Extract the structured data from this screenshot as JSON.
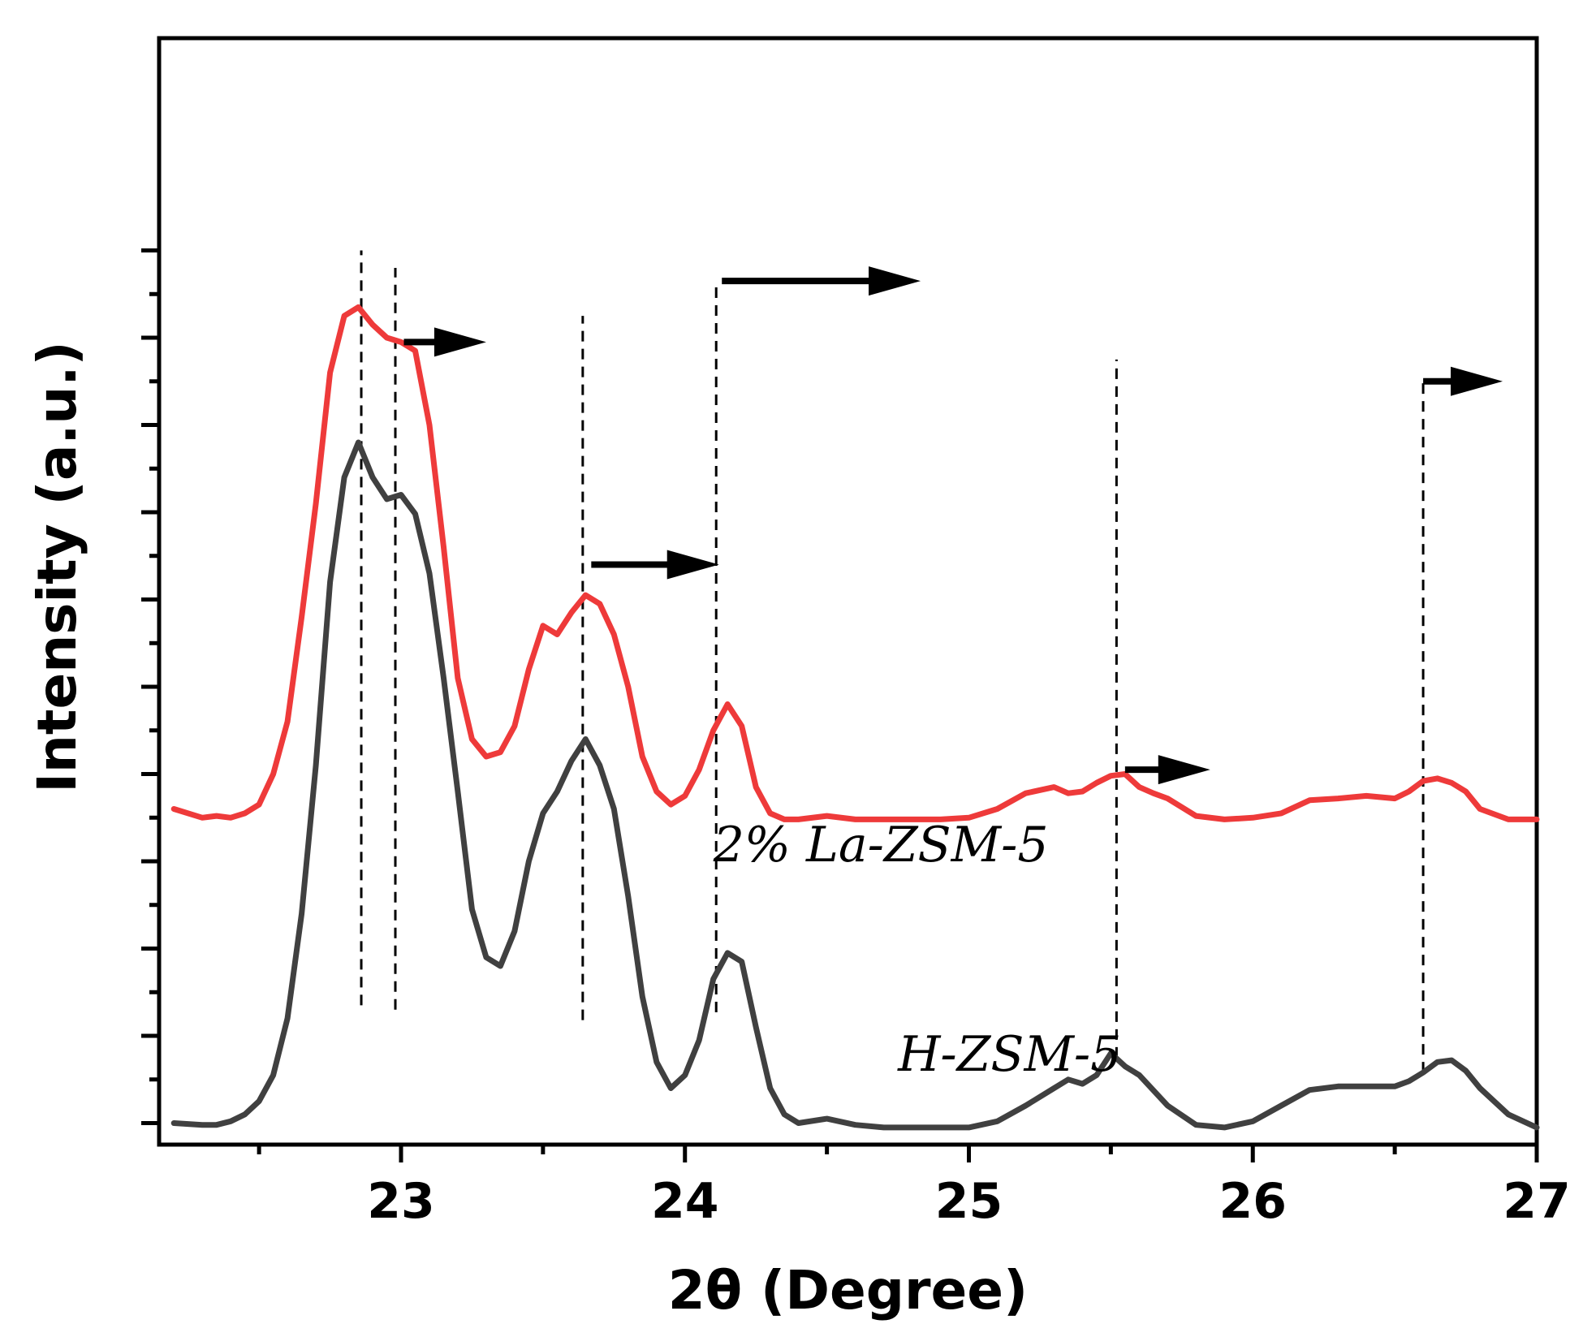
{
  "chart_data": {
    "type": "line",
    "xlabel": "2θ (Degree)",
    "ylabel": "Intensity (a.u.)",
    "xlim": [
      22.2,
      27.0
    ],
    "ylim": [
      0,
      1000
    ],
    "xticks": [
      23,
      24,
      25,
      26,
      27
    ],
    "xtick_labels": [
      "23",
      "24",
      "25",
      "26",
      "27"
    ],
    "minor_xticks": [
      22.5,
      23.5,
      24.5,
      25.5,
      26.5
    ],
    "yticks": [
      20,
      120,
      220,
      320,
      420,
      520,
      620,
      720,
      820,
      920,
      1020
    ],
    "y_tick_labels": false,
    "grid": false,
    "legend": "none",
    "series": [
      {
        "name": "H-ZSM-5",
        "color": "#404040",
        "x": [
          22.2,
          22.3,
          22.35,
          22.4,
          22.45,
          22.5,
          22.55,
          22.6,
          22.65,
          22.7,
          22.75,
          22.8,
          22.85,
          22.9,
          22.95,
          23.0,
          23.05,
          23.1,
          23.15,
          23.2,
          23.25,
          23.3,
          23.35,
          23.4,
          23.45,
          23.5,
          23.55,
          23.6,
          23.65,
          23.7,
          23.75,
          23.8,
          23.85,
          23.9,
          23.95,
          24.0,
          24.05,
          24.1,
          24.15,
          24.2,
          24.25,
          24.3,
          24.35,
          24.4,
          24.5,
          24.6,
          24.7,
          24.8,
          24.9,
          25.0,
          25.1,
          25.2,
          25.3,
          25.35,
          25.4,
          25.45,
          25.5,
          25.55,
          25.6,
          25.7,
          25.8,
          25.9,
          26.0,
          26.1,
          26.2,
          26.3,
          26.4,
          26.5,
          26.55,
          26.6,
          26.65,
          26.7,
          26.75,
          26.8,
          26.9,
          27.0
        ],
        "values": [
          20,
          18,
          18,
          22,
          30,
          45,
          75,
          140,
          260,
          430,
          640,
          760,
          800,
          760,
          735,
          740,
          718,
          650,
          530,
          400,
          265,
          210,
          200,
          240,
          320,
          375,
          400,
          435,
          460,
          430,
          380,
          280,
          165,
          90,
          60,
          75,
          115,
          185,
          215,
          205,
          130,
          60,
          30,
          20,
          25,
          18,
          15,
          15,
          15,
          15,
          22,
          40,
          60,
          70,
          65,
          75,
          100,
          85,
          75,
          40,
          18,
          15,
          22,
          40,
          58,
          62,
          62,
          62,
          68,
          78,
          90,
          92,
          80,
          60,
          30,
          15
        ]
      },
      {
        "name": "2% La-ZSM-5",
        "color": "#ee3a3a",
        "x": [
          22.2,
          22.3,
          22.35,
          22.4,
          22.45,
          22.5,
          22.55,
          22.6,
          22.65,
          22.7,
          22.75,
          22.8,
          22.85,
          22.9,
          22.95,
          23.0,
          23.05,
          23.1,
          23.15,
          23.2,
          23.25,
          23.3,
          23.35,
          23.4,
          23.45,
          23.5,
          23.55,
          23.6,
          23.65,
          23.7,
          23.75,
          23.8,
          23.85,
          23.9,
          23.95,
          24.0,
          24.05,
          24.1,
          24.15,
          24.2,
          24.25,
          24.3,
          24.35,
          24.4,
          24.5,
          24.6,
          24.7,
          24.8,
          24.9,
          25.0,
          25.1,
          25.2,
          25.3,
          25.35,
          25.4,
          25.45,
          25.5,
          25.55,
          25.6,
          25.65,
          25.7,
          25.8,
          25.9,
          26.0,
          26.1,
          26.2,
          26.3,
          26.4,
          26.5,
          26.55,
          26.6,
          26.65,
          26.7,
          26.75,
          26.8,
          26.9,
          27.0
        ],
        "values": [
          380,
          370,
          372,
          370,
          375,
          385,
          420,
          480,
          600,
          730,
          880,
          945,
          955,
          935,
          920,
          915,
          905,
          820,
          680,
          530,
          460,
          440,
          445,
          475,
          540,
          590,
          580,
          605,
          625,
          615,
          580,
          520,
          440,
          400,
          385,
          395,
          425,
          470,
          500,
          475,
          405,
          375,
          368,
          368,
          372,
          368,
          368,
          368,
          368,
          370,
          380,
          398,
          405,
          398,
          400,
          410,
          418,
          420,
          405,
          398,
          392,
          372,
          368,
          370,
          375,
          390,
          392,
          395,
          392,
          400,
          412,
          415,
          410,
          400,
          380,
          368,
          368
        ]
      }
    ],
    "series_labels": [
      {
        "text": "2% La-ZSM-5",
        "series": "2% La-ZSM-5",
        "anchor_x": 24.1,
        "anchor_y": 320
      },
      {
        "text": "H-ZSM-5",
        "series": "H-ZSM-5",
        "anchor_x": 24.75,
        "anchor_y": 80
      }
    ],
    "annotations": {
      "dashed_reference_lines": [
        {
          "x": 22.86,
          "y_from": 155,
          "y_to": 1020
        },
        {
          "x": 22.98,
          "y_from": 150,
          "y_to": 1000
        },
        {
          "x": 23.64,
          "y_from": 138,
          "y_to": 945
        },
        {
          "x": 24.11,
          "y_from": 147,
          "y_to": 985
        },
        {
          "x": 25.52,
          "y_from": 95,
          "y_to": 895
        },
        {
          "x": 26.6,
          "y_from": 78,
          "y_to": 875
        }
      ],
      "shift_arrows": [
        {
          "x_from": 23.01,
          "x_to": 23.3,
          "y": 915
        },
        {
          "x_from": 24.13,
          "x_to": 24.83,
          "y": 985
        },
        {
          "x_from": 23.67,
          "x_to": 24.12,
          "y": 660
        },
        {
          "x_from": 25.55,
          "x_to": 25.85,
          "y": 425
        },
        {
          "x_from": 26.6,
          "x_to": 26.88,
          "y": 870
        }
      ]
    }
  }
}
